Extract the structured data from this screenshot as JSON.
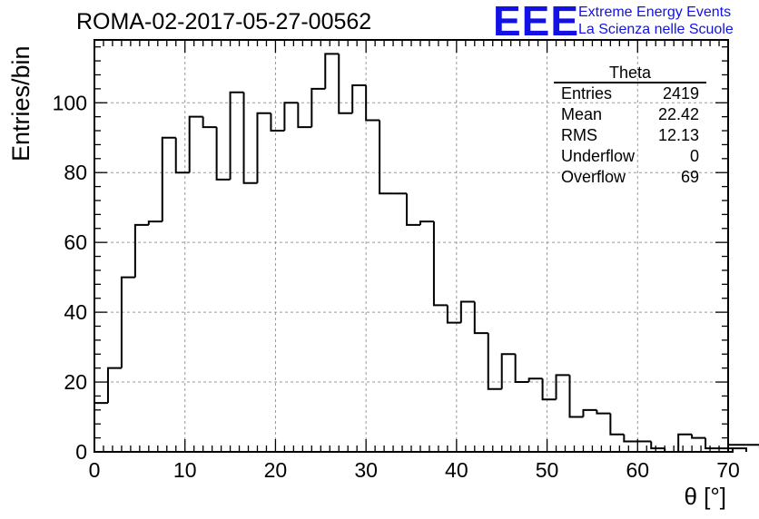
{
  "title": "ROMA-02-2017-05-27-00562",
  "logo": {
    "mark": "EEE",
    "line1": "Extreme Energy Events",
    "line2": "La Scienza nelle Scuole",
    "color": "#1212e6"
  },
  "stats": {
    "title": "Theta",
    "rows": [
      {
        "label": "Entries",
        "value": "2419"
      },
      {
        "label": "Mean",
        "value": "22.42"
      },
      {
        "label": "RMS",
        "value": "12.13"
      },
      {
        "label": "Underflow",
        "value": "0"
      },
      {
        "label": "Overflow",
        "value": "69"
      }
    ]
  },
  "chart_data": {
    "type": "bar",
    "style": "step-histogram",
    "title": "ROMA-02-2017-05-27-00562",
    "xlabel": "θ [°]",
    "ylabel": "Entries/bin",
    "xlim": [
      0,
      70
    ],
    "ylim": [
      0,
      118
    ],
    "xticks": [
      0,
      10,
      20,
      30,
      40,
      50,
      60,
      70
    ],
    "yticks": [
      0,
      20,
      40,
      60,
      80,
      100
    ],
    "bin_width": 1.5,
    "bin_start": 0,
    "values": [
      14,
      24,
      50,
      65,
      66,
      90,
      80,
      96,
      93,
      78,
      103,
      77,
      97,
      92,
      100,
      93,
      104,
      114,
      97,
      105,
      95,
      74,
      74,
      65,
      66,
      42,
      37,
      43,
      34,
      18,
      28,
      20,
      21,
      15,
      22,
      10,
      12,
      11,
      5,
      3,
      3,
      1,
      0,
      5,
      4,
      1,
      1,
      0,
      1,
      2
    ],
    "grid": true,
    "line_color": "#000000"
  }
}
